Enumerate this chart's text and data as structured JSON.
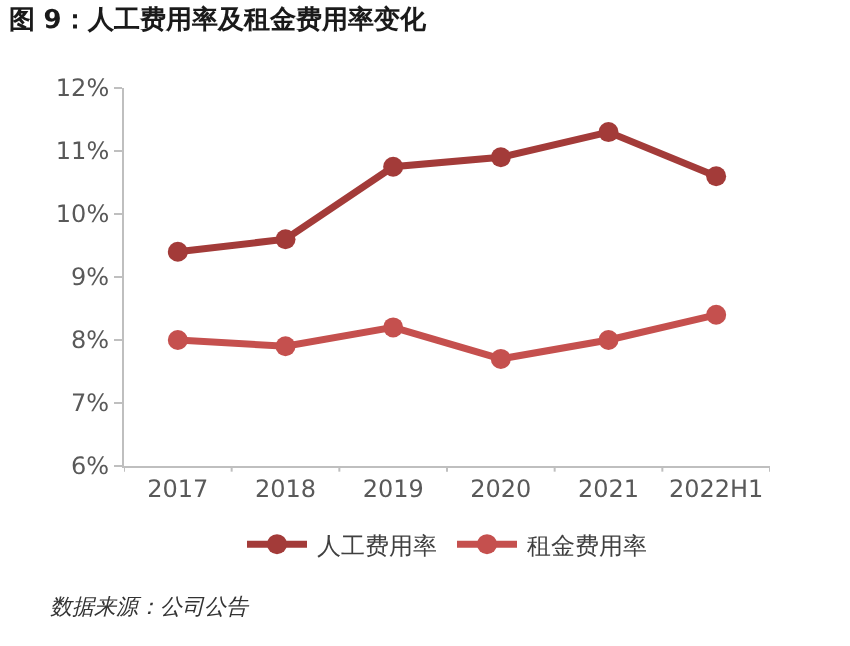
{
  "chart_data": {
    "type": "line",
    "title": "图 9：人工费用率及租金费用率变化",
    "categories": [
      "2017",
      "2018",
      "2019",
      "2020",
      "2021",
      "2022H1"
    ],
    "series": [
      {
        "name": "人工费用率",
        "color": "#a33b39",
        "values": [
          9.4,
          9.6,
          10.75,
          10.9,
          11.3,
          10.6
        ]
      },
      {
        "name": "租金费用率",
        "color": "#c5504e",
        "values": [
          8.0,
          7.9,
          8.2,
          7.7,
          8.0,
          8.4
        ]
      }
    ],
    "ylim": [
      6,
      12
    ],
    "yticks": [
      {
        "value": 6,
        "label": "6%"
      },
      {
        "value": 7,
        "label": "7%"
      },
      {
        "value": 8,
        "label": "8%"
      },
      {
        "value": 9,
        "label": "9%"
      },
      {
        "value": 10,
        "label": "10%"
      },
      {
        "value": 11,
        "label": "11%"
      },
      {
        "value": 12,
        "label": "12%"
      }
    ],
    "legend": "bottom",
    "marker": "circle",
    "line_style": "solid",
    "annotations": [
      "数据来源：公司公告"
    ]
  }
}
